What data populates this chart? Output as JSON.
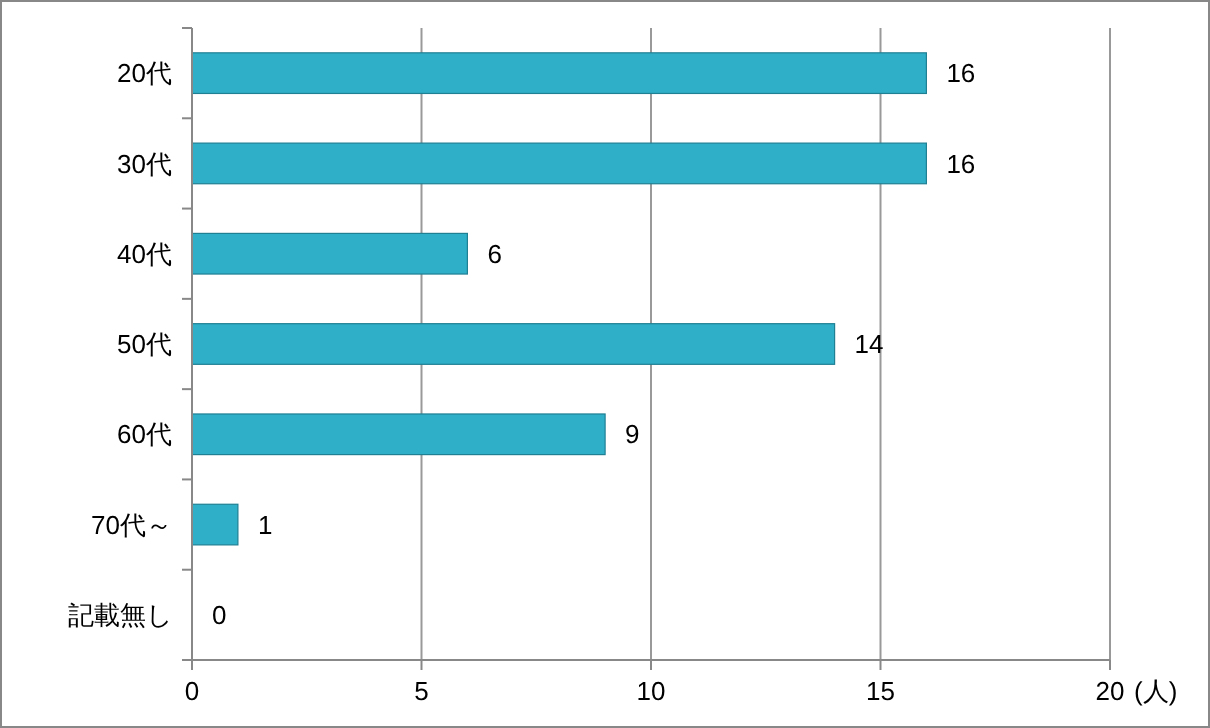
{
  "chart_data": {
    "type": "bar",
    "orientation": "horizontal",
    "categories": [
      "20代",
      "30代",
      "40代",
      "50代",
      "60代",
      "70代～",
      "記載無し"
    ],
    "values": [
      16,
      16,
      6,
      14,
      9,
      1,
      0
    ],
    "color": "#2fb0c8",
    "xlim": [
      0,
      20
    ],
    "xticks": [
      0,
      5,
      10,
      15,
      20
    ],
    "xlabel": "(人)",
    "grid": "x",
    "data_labels": true
  }
}
